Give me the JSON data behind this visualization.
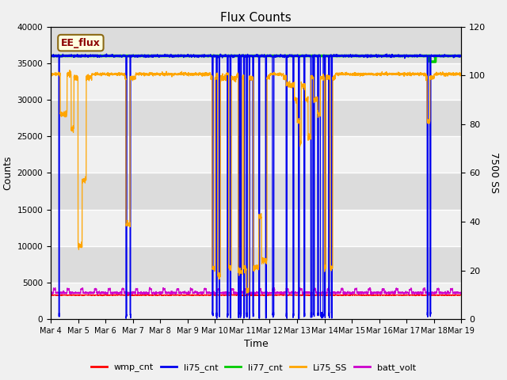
{
  "title": "Flux Counts",
  "xlabel": "Time",
  "ylabel_left": "Counts",
  "ylabel_right": "7500 SS",
  "ylim_left": [
    0,
    40000
  ],
  "ylim_right": [
    0,
    120
  ],
  "xtick_labels": [
    "Mar 4",
    "Mar 5",
    "Mar 6",
    "Mar 7",
    "Mar 8",
    "Mar 9",
    "Mar 10",
    "Mar 11",
    "Mar 12",
    "Mar 13",
    "Mar 14",
    "Mar 15",
    "Mar 16",
    "Mar 17",
    "Mar 18",
    "Mar 19"
  ],
  "annotation_text": "EE_flux",
  "annotation_color": "#8B0000",
  "annotation_bg": "#FFFFE0",
  "colors": {
    "wmp_cnt": "#FF0000",
    "li75_cnt": "#0000EE",
    "li77_cnt": "#00CC00",
    "Li75_SS": "#FFA500",
    "batt_volt": "#CC00CC"
  },
  "bg_dark": "#DCDCDC",
  "bg_light": "#F0F0F0",
  "grid_color": "#FFFFFF",
  "fig_bg": "#F0F0F0"
}
